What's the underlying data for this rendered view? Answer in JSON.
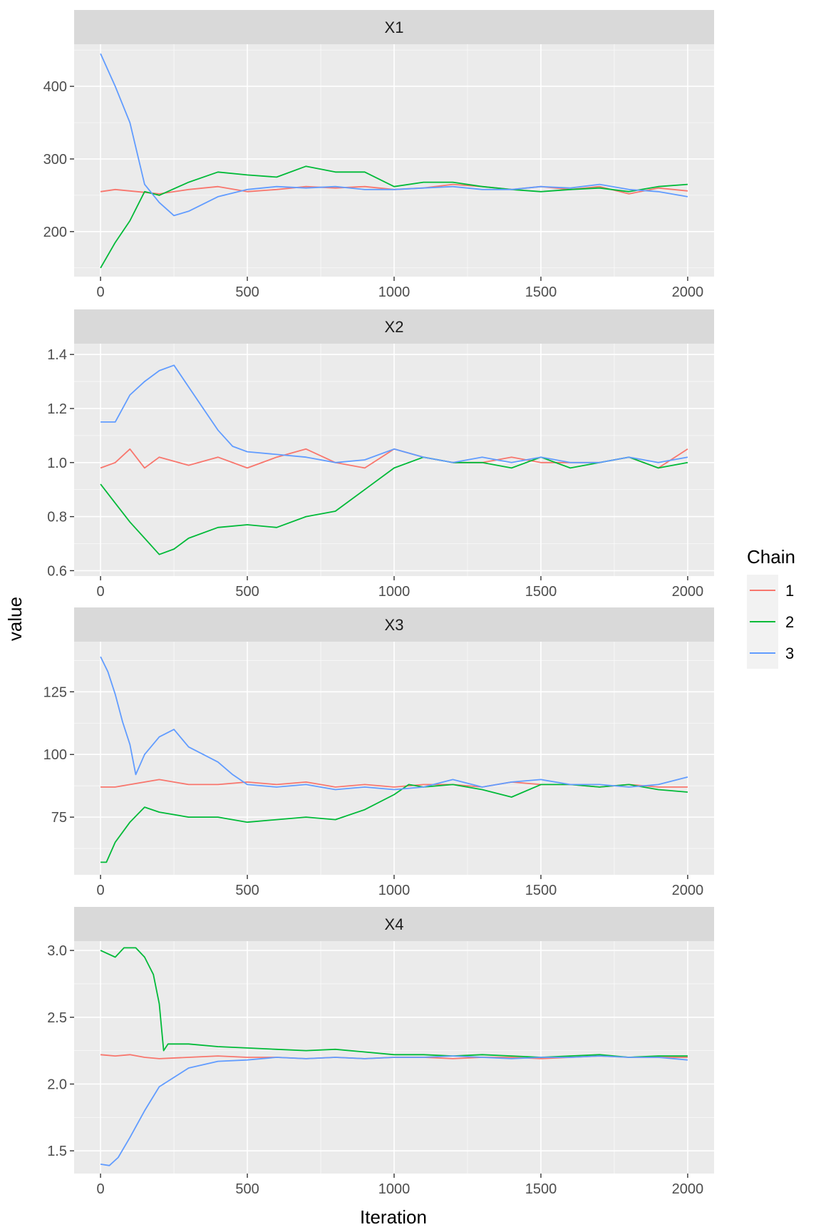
{
  "colors": {
    "background": "#ffffff",
    "panel_background": "#ebebeb",
    "strip_background": "#d9d9d9",
    "grid": "#ffffff",
    "text": "#4d4d4d",
    "title_text": "#000000",
    "chain_1": "#f8766d",
    "chain_2": "#00ba38",
    "chain_3": "#619cff"
  },
  "chart_data": {
    "type": "line",
    "xlabel": "Iteration",
    "ylabel": "value",
    "xlim": [
      -90,
      2090
    ],
    "x_ticks": [
      0,
      500,
      1000,
      1500,
      2000
    ],
    "grid": true,
    "legend": {
      "title": "Chain",
      "position": "right",
      "entries": [
        "1",
        "2",
        "3"
      ]
    },
    "panels": [
      {
        "strip": "X1",
        "ylim": [
          138,
          458
        ],
        "y_ticks": [
          200,
          300,
          400
        ],
        "series": [
          {
            "name": "1",
            "x": [
              0,
              50,
              100,
              150,
              200,
              300,
              400,
              500,
              600,
              700,
              800,
              900,
              1000,
              1100,
              1200,
              1300,
              1400,
              1500,
              1600,
              1700,
              1800,
              1900,
              2000
            ],
            "values": [
              255,
              258,
              256,
              254,
              252,
              258,
              262,
              255,
              258,
              262,
              260,
              262,
              258,
              260,
              265,
              262,
              258,
              262,
              258,
              262,
              252,
              260,
              256
            ]
          },
          {
            "name": "2",
            "x": [
              0,
              50,
              100,
              150,
              200,
              300,
              400,
              500,
              600,
              700,
              800,
              900,
              1000,
              1100,
              1200,
              1300,
              1400,
              1500,
              1600,
              1700,
              1800,
              1900,
              2000
            ],
            "values": [
              150,
              185,
              215,
              255,
              250,
              268,
              282,
              278,
              275,
              290,
              282,
              282,
              262,
              268,
              268,
              262,
              258,
              255,
              258,
              260,
              255,
              262,
              265
            ]
          },
          {
            "name": "3",
            "x": [
              0,
              50,
              100,
              150,
              200,
              250,
              300,
              400,
              500,
              600,
              700,
              800,
              900,
              1000,
              1100,
              1200,
              1300,
              1400,
              1500,
              1600,
              1700,
              1800,
              1900,
              2000
            ],
            "values": [
              445,
              400,
              350,
              265,
              240,
              222,
              228,
              248,
              258,
              262,
              260,
              262,
              258,
              258,
              260,
              262,
              258,
              258,
              262,
              260,
              265,
              258,
              255,
              248
            ]
          }
        ]
      },
      {
        "strip": "X2",
        "ylim": [
          0.58,
          1.44
        ],
        "y_ticks": [
          0.6,
          0.8,
          1.0,
          1.2,
          1.4
        ],
        "series": [
          {
            "name": "1",
            "x": [
              0,
              50,
              100,
              150,
              200,
              300,
              400,
              500,
              600,
              700,
              800,
              900,
              1000,
              1100,
              1200,
              1300,
              1400,
              1500,
              1600,
              1700,
              1800,
              1900,
              2000
            ],
            "values": [
              0.98,
              1.0,
              1.05,
              0.98,
              1.02,
              0.99,
              1.02,
              0.98,
              1.02,
              1.05,
              1.0,
              0.98,
              1.05,
              1.02,
              1.0,
              1.0,
              1.02,
              1.0,
              1.0,
              1.0,
              1.02,
              0.98,
              1.05
            ]
          },
          {
            "name": "2",
            "x": [
              0,
              50,
              100,
              150,
              200,
              250,
              300,
              400,
              500,
              600,
              700,
              800,
              900,
              1000,
              1100,
              1200,
              1300,
              1400,
              1500,
              1600,
              1700,
              1800,
              1900,
              2000
            ],
            "values": [
              0.92,
              0.85,
              0.78,
              0.72,
              0.66,
              0.68,
              0.72,
              0.76,
              0.77,
              0.76,
              0.8,
              0.82,
              0.9,
              0.98,
              1.02,
              1.0,
              1.0,
              0.98,
              1.02,
              0.98,
              1.0,
              1.02,
              0.98,
              1.0
            ]
          },
          {
            "name": "3",
            "x": [
              0,
              50,
              100,
              150,
              200,
              250,
              300,
              350,
              400,
              450,
              500,
              600,
              700,
              800,
              900,
              1000,
              1100,
              1200,
              1300,
              1400,
              1500,
              1600,
              1700,
              1800,
              1900,
              2000
            ],
            "values": [
              1.15,
              1.15,
              1.25,
              1.3,
              1.34,
              1.36,
              1.28,
              1.2,
              1.12,
              1.06,
              1.04,
              1.03,
              1.02,
              1.0,
              1.01,
              1.05,
              1.02,
              1.0,
              1.02,
              1.0,
              1.02,
              1.0,
              1.0,
              1.02,
              1.0,
              1.02
            ]
          }
        ]
      },
      {
        "strip": "X3",
        "ylim": [
          52,
          145
        ],
        "y_ticks": [
          75,
          100,
          125
        ],
        "series": [
          {
            "name": "1",
            "x": [
              0,
              50,
              100,
              150,
              200,
              300,
              400,
              500,
              600,
              700,
              800,
              900,
              1000,
              1100,
              1200,
              1300,
              1400,
              1500,
              1600,
              1700,
              1800,
              1900,
              2000
            ],
            "values": [
              87,
              87,
              88,
              89,
              90,
              88,
              88,
              89,
              88,
              89,
              87,
              88,
              87,
              88,
              88,
              87,
              89,
              88,
              88,
              87,
              88,
              87,
              87
            ]
          },
          {
            "name": "2",
            "x": [
              0,
              20,
              50,
              100,
              150,
              200,
              300,
              400,
              500,
              600,
              700,
              800,
              900,
              1000,
              1050,
              1100,
              1200,
              1300,
              1400,
              1500,
              1600,
              1700,
              1800,
              1900,
              2000
            ],
            "values": [
              57,
              57,
              65,
              73,
              79,
              77,
              75,
              75,
              73,
              74,
              75,
              74,
              78,
              84,
              88,
              87,
              88,
              86,
              83,
              88,
              88,
              87,
              88,
              86,
              85
            ]
          },
          {
            "name": "3",
            "x": [
              0,
              25,
              50,
              75,
              100,
              120,
              150,
              200,
              250,
              300,
              350,
              400,
              450,
              500,
              600,
              700,
              800,
              900,
              1000,
              1100,
              1200,
              1300,
              1400,
              1500,
              1600,
              1700,
              1800,
              1900,
              2000
            ],
            "values": [
              139,
              133,
              124,
              113,
              104,
              92,
              100,
              107,
              110,
              103,
              100,
              97,
              92,
              88,
              87,
              88,
              86,
              87,
              86,
              87,
              90,
              87,
              89,
              90,
              88,
              88,
              87,
              88,
              91
            ]
          }
        ]
      },
      {
        "strip": "X4",
        "ylim": [
          1.33,
          3.07
        ],
        "y_ticks": [
          1.5,
          2.0,
          2.5,
          3.0
        ],
        "series": [
          {
            "name": "1",
            "x": [
              0,
              50,
              100,
              150,
              200,
              300,
              400,
              500,
              600,
              700,
              800,
              900,
              1000,
              1100,
              1200,
              1300,
              1400,
              1500,
              1600,
              1700,
              1800,
              1900,
              2000
            ],
            "values": [
              2.22,
              2.21,
              2.22,
              2.2,
              2.19,
              2.2,
              2.21,
              2.2,
              2.2,
              2.19,
              2.2,
              2.19,
              2.2,
              2.2,
              2.19,
              2.2,
              2.2,
              2.19,
              2.2,
              2.21,
              2.2,
              2.2,
              2.2
            ]
          },
          {
            "name": "2",
            "x": [
              0,
              50,
              80,
              120,
              150,
              180,
              200,
              215,
              230,
              300,
              400,
              500,
              600,
              700,
              800,
              900,
              1000,
              1100,
              1200,
              1300,
              1400,
              1500,
              1600,
              1700,
              1800,
              1900,
              2000
            ],
            "values": [
              3.0,
              2.95,
              3.02,
              3.02,
              2.95,
              2.82,
              2.6,
              2.25,
              2.3,
              2.3,
              2.28,
              2.27,
              2.26,
              2.25,
              2.26,
              2.24,
              2.22,
              2.22,
              2.21,
              2.22,
              2.21,
              2.2,
              2.21,
              2.22,
              2.2,
              2.21,
              2.21
            ]
          },
          {
            "name": "3",
            "x": [
              0,
              30,
              60,
              100,
              150,
              200,
              250,
              300,
              400,
              500,
              600,
              700,
              800,
              900,
              1000,
              1100,
              1200,
              1300,
              1400,
              1500,
              1600,
              1700,
              1800,
              1900,
              2000
            ],
            "values": [
              1.4,
              1.39,
              1.45,
              1.6,
              1.8,
              1.98,
              2.05,
              2.12,
              2.17,
              2.18,
              2.2,
              2.19,
              2.2,
              2.19,
              2.2,
              2.2,
              2.21,
              2.2,
              2.19,
              2.2,
              2.2,
              2.21,
              2.2,
              2.2,
              2.18
            ]
          }
        ]
      }
    ]
  }
}
